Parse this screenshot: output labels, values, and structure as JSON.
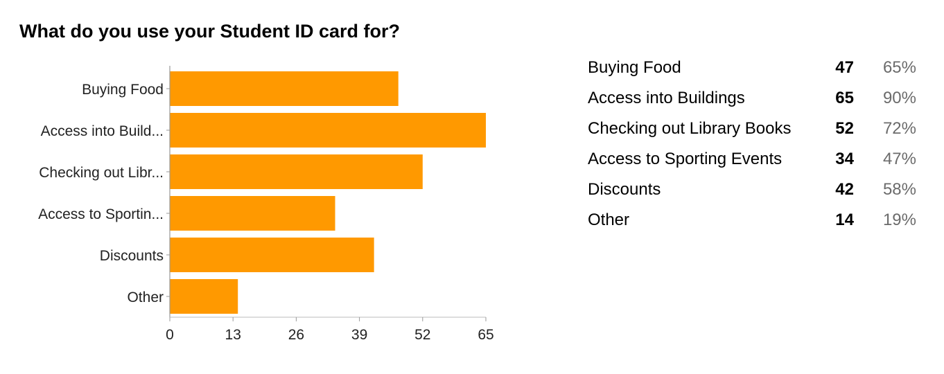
{
  "chart_data": {
    "type": "bar",
    "orientation": "horizontal",
    "title": "What do you use your Student ID card for?",
    "categories": [
      "Buying Food",
      "Access into Build...",
      "Checking out Libr...",
      "Access to Sportin...",
      "Discounts",
      "Other"
    ],
    "values": [
      47,
      65,
      52,
      34,
      42,
      14
    ],
    "xlim": [
      0,
      65
    ],
    "xticks": [
      "0",
      "13",
      "26",
      "39",
      "52",
      "65"
    ],
    "bar_color": "#ff9900",
    "grid": false,
    "legend": "right"
  },
  "summary": {
    "rows": [
      {
        "label": "Buying Food",
        "count": "47",
        "percent": "65%"
      },
      {
        "label": "Access into Buildings",
        "count": "65",
        "percent": "90%"
      },
      {
        "label": "Checking out Library Books",
        "count": "52",
        "percent": "72%"
      },
      {
        "label": "Access to Sporting Events",
        "count": "34",
        "percent": "47%"
      },
      {
        "label": "Discounts",
        "count": "42",
        "percent": "58%"
      },
      {
        "label": "Other",
        "count": "14",
        "percent": "19%"
      }
    ]
  }
}
